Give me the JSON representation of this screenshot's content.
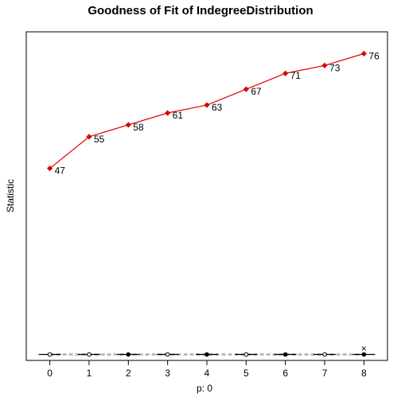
{
  "chart_data": {
    "type": "line",
    "title": "Goodness of Fit of IndegreeDistribution",
    "xlabel": "p: 0",
    "ylabel": "Statistic",
    "x": [
      0,
      1,
      2,
      3,
      4,
      5,
      6,
      7,
      8
    ],
    "x_tick_labels": [
      "0",
      "1",
      "2",
      "3",
      "4",
      "5",
      "6",
      "7",
      "8"
    ],
    "xlim": [
      -0.6,
      8.6
    ],
    "ylim": [
      -1.5,
      81.5
    ],
    "grid": false,
    "observed": {
      "color": "#dd0000",
      "values": [
        47,
        55,
        58,
        61,
        63,
        67,
        71,
        73,
        76
      ],
      "labels": [
        "47",
        "55",
        "58",
        "61",
        "63",
        "67",
        "71",
        "73",
        "76"
      ]
    },
    "simulated": {
      "median_line_color": "#bbbbbb",
      "band_low": [
        0,
        0,
        0,
        0,
        0,
        0,
        0,
        0,
        0
      ],
      "band_high": [
        0,
        0,
        0,
        0,
        0,
        0,
        0,
        0,
        0
      ],
      "box_min": [
        0,
        0,
        0,
        0,
        0,
        0,
        0,
        0,
        0
      ],
      "box_max": [
        0,
        0,
        0,
        0,
        0,
        0,
        0,
        0,
        0
      ],
      "outlier_marker": "×",
      "outliers": [
        {
          "x": 8,
          "y": 1.5
        }
      ]
    }
  }
}
